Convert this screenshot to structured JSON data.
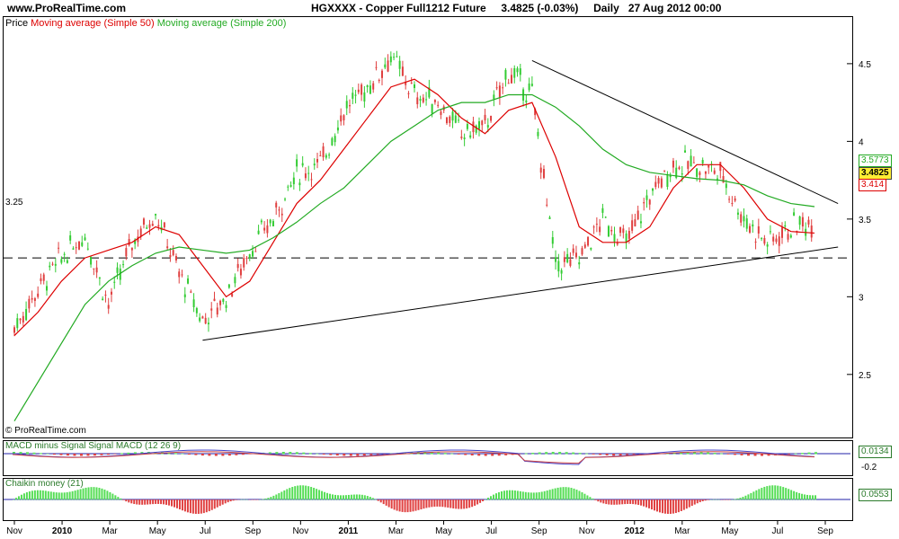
{
  "header": {
    "site": "www.ProRealTime.com",
    "symbol": "HGXXXX - Copper Full1212 Future",
    "price": "3.4825 (-0.03%)",
    "period": "Daily",
    "datetime": "27 Aug 2012 00:00"
  },
  "legend": {
    "price": "Price",
    "ma50": "Moving average (Simple 50)",
    "ma200": "Moving average (Simple 200)",
    "copyright": "© ProRealTime.com"
  },
  "macd_legend": {
    "text": "MACD minus Signal Signal MACD (12 26 9)"
  },
  "chaikin_legend": {
    "text": "Chaikin money (21)"
  },
  "boxes": {
    "ma200_val": "3.5773",
    "last": "3.4825",
    "ma50_val": "3.414",
    "macd_val": "0.0134",
    "macd_tick": "-0.2",
    "chaikin_val": "0.0553"
  },
  "colors": {
    "up": "#33cc33",
    "down": "#e04040",
    "ma50": "#dd0000",
    "ma200": "#22aa22",
    "macd": "#4444cc",
    "signal": "#cc4444",
    "chaikin_pos": "#55dd55",
    "chaikin_neg": "#e04040",
    "last_box": "#ffee33"
  },
  "chart_data": {
    "type": "line",
    "title": "HGXXXX - Copper Full1212 Future",
    "subtitle": "3.4825 (-0.03%) Daily 27 Aug 2012 00:00",
    "ylim": [
      2.1,
      4.8
    ],
    "y_ticks": [
      2.5,
      3,
      3.5,
      4,
      4.5
    ],
    "x_ticks": [
      "Nov",
      "2010",
      "Mar",
      "May",
      "Jul",
      "Sep",
      "Nov",
      "2011",
      "Mar",
      "May",
      "Jul",
      "Sep",
      "Nov",
      "2012",
      "Mar",
      "May",
      "Jul",
      "Sep"
    ],
    "support_level": {
      "label": "3.25",
      "value": 3.25
    },
    "x": [
      "2009-10",
      "2009-11",
      "2009-12",
      "2010-01",
      "2010-02",
      "2010-03",
      "2010-04",
      "2010-05",
      "2010-06",
      "2010-07",
      "2010-08",
      "2010-09",
      "2010-10",
      "2010-11",
      "2010-12",
      "2011-01",
      "2011-02",
      "2011-03",
      "2011-04",
      "2011-05",
      "2011-06",
      "2011-07",
      "2011-08",
      "2011-09",
      "2011-10",
      "2011-11",
      "2011-12",
      "2012-01",
      "2012-02",
      "2012-03",
      "2012-04",
      "2012-05",
      "2012-06",
      "2012-07",
      "2012-08"
    ],
    "series": [
      {
        "name": "Price",
        "values": [
          2.8,
          3.05,
          3.25,
          3.4,
          2.95,
          3.35,
          3.55,
          3.15,
          2.85,
          3.0,
          3.3,
          3.5,
          3.8,
          3.85,
          4.2,
          4.35,
          4.55,
          4.3,
          4.25,
          4.05,
          4.1,
          4.45,
          4.3,
          3.2,
          3.25,
          3.5,
          3.35,
          3.65,
          3.85,
          3.85,
          3.8,
          3.5,
          3.35,
          3.45,
          3.48
        ]
      },
      {
        "name": "Moving average (Simple 50)",
        "values": [
          2.75,
          2.9,
          3.1,
          3.25,
          3.3,
          3.35,
          3.45,
          3.4,
          3.2,
          3.0,
          3.1,
          3.35,
          3.6,
          3.75,
          3.95,
          4.15,
          4.35,
          4.4,
          4.3,
          4.15,
          4.05,
          4.2,
          4.25,
          3.9,
          3.45,
          3.35,
          3.35,
          3.45,
          3.7,
          3.85,
          3.85,
          3.7,
          3.5,
          3.42,
          3.41
        ]
      },
      {
        "name": "Moving average (Simple 200)",
        "values": [
          2.2,
          2.45,
          2.7,
          2.95,
          3.1,
          3.2,
          3.28,
          3.32,
          3.3,
          3.28,
          3.3,
          3.38,
          3.48,
          3.6,
          3.7,
          3.85,
          4.0,
          4.1,
          4.2,
          4.25,
          4.25,
          4.3,
          4.3,
          4.22,
          4.1,
          3.95,
          3.85,
          3.8,
          3.78,
          3.76,
          3.75,
          3.72,
          3.65,
          3.6,
          3.58
        ]
      }
    ],
    "trendlines": [
      {
        "name": "resistance",
        "from": [
          "2011-08",
          4.52
        ],
        "to": [
          "2012-09",
          3.6
        ]
      },
      {
        "name": "support",
        "from": [
          "2010-06",
          2.72
        ],
        "to": [
          "2012-09",
          3.32
        ]
      }
    ]
  }
}
